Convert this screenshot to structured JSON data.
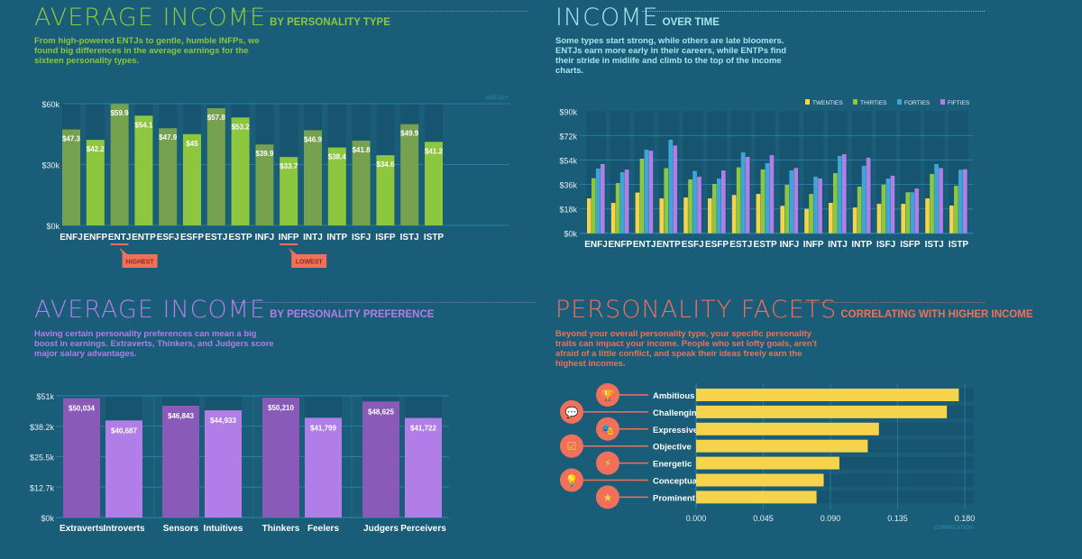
{
  "colors": {
    "background": "#1a5d78",
    "track": "#165470",
    "grid": "#2a8fb8",
    "green": "#8dc63f",
    "green_dark": "#76a14e",
    "teal": "#a8e4ef",
    "purple": "#b07ee6",
    "purple_dark": "#8a5ab8",
    "coral": "#f0705a",
    "yellow": "#f5d34a",
    "blue": "#3ea6d4"
  },
  "panel1": {
    "title": "AVERAGE INCOME",
    "subtitle": "BY PERSONALITY TYPE",
    "description": "From high-powered ENTJs to gentle, humble INFPs, we found big differences in the average earnings for the sixteen personality types.",
    "note": "AGE 21+",
    "highest_label": "HIGHEST",
    "lowest_label": "LOWEST"
  },
  "panel2": {
    "title": "INCOME",
    "subtitle": "OVER TIME",
    "description": "Some types start strong, while others are late bloomers. ENTJs earn more early in their careers, while ENTPs find their stride in midlife and climb to the top of the income charts."
  },
  "panel3": {
    "title": "AVERAGE INCOME",
    "subtitle": "BY PERSONALITY PREFERENCE",
    "description": "Having certain personality preferences can mean a big boost in earnings. Extraverts, Thinkers, and Judgers score major salary advantages."
  },
  "panel4": {
    "title": "PERSONALITY FACETS",
    "subtitle": "CORRELATING WITH HIGHER INCOME",
    "description": "Beyond your overall personality type, your specific personality traits can impact your income. People who set lofty goals, aren't afraid of a little conflict, and speak their ideas freely earn the highest incomes."
  },
  "chart_data": [
    {
      "type": "bar",
      "categories": [
        "ENFJ",
        "ENFP",
        "ENTJ",
        "ENTP",
        "ESFJ",
        "ESFP",
        "ESTJ",
        "ESTP",
        "INFJ",
        "INFP",
        "INTJ",
        "INTP",
        "ISFJ",
        "ISFP",
        "ISTJ",
        "ISTP"
      ],
      "values": [
        47.3,
        42.2,
        59.9,
        54.1,
        47.9,
        45,
        57.8,
        53.2,
        39.9,
        33.7,
        46.9,
        38.4,
        41.8,
        34.6,
        49.9,
        41.2
      ],
      "data_labels": [
        "$47.3",
        "$42.2",
        "$59.9",
        "$54.1",
        "$47.9",
        "$45",
        "$57.8",
        "$53.2",
        "$39.9",
        "$33.7",
        "$46.9",
        "$38.4",
        "$41.8",
        "$34.6",
        "$49.9",
        "$41.2"
      ],
      "ylim": [
        0,
        60
      ],
      "yticks": [
        "$0k",
        "$30k",
        "$60k"
      ],
      "ytick_values": [
        0,
        30,
        60
      ],
      "highlight": {
        "highest": "ENTJ",
        "lowest": "INFP"
      }
    },
    {
      "type": "bar",
      "categories": [
        "ENFJ",
        "ENFP",
        "ENTJ",
        "ENTP",
        "ESFJ",
        "ESFP",
        "ESTJ",
        "ESTP",
        "INFJ",
        "INFP",
        "INTJ",
        "INTP",
        "ISFJ",
        "ISFP",
        "ISTJ",
        "ISTP"
      ],
      "series": [
        {
          "name": "TWENTIES",
          "color": "#f5d34a",
          "values": [
            25.7,
            22.4,
            30,
            25.7,
            26.4,
            25.7,
            28.2,
            29,
            20.2,
            18,
            22.4,
            19,
            21.7,
            21.7,
            25.7,
            20.4
          ]
        },
        {
          "name": "THIRTIES",
          "color": "#8dc63f",
          "values": [
            40.6,
            37,
            55,
            48,
            39.7,
            36.4,
            48.6,
            47,
            35.7,
            29,
            44.3,
            34.4,
            35.9,
            30.2,
            43.7,
            35
          ]
        },
        {
          "name": "FORTIES",
          "color": "#3ea6d4",
          "values": [
            47.7,
            45,
            61.6,
            69,
            45.9,
            40.4,
            59.6,
            51.7,
            46.3,
            41.7,
            57,
            49.7,
            40.4,
            30.2,
            51,
            46.8
          ]
        },
        {
          "name": "FIFTIES",
          "color": "#b07ee6",
          "values": [
            51,
            47,
            60.8,
            64.7,
            41.7,
            46.3,
            56.3,
            57.6,
            48.1,
            40.4,
            58.3,
            55.7,
            42.4,
            33,
            48.1,
            47.2
          ]
        }
      ],
      "ylim": [
        0,
        90
      ],
      "yticks": [
        "$0k",
        "$18k",
        "$36k",
        "$54k",
        "$72k",
        "$90k"
      ],
      "ytick_values": [
        0,
        18,
        36,
        54,
        72,
        90
      ],
      "legend": "top-right"
    },
    {
      "type": "bar",
      "categories": [
        "Extraverts",
        "Introverts",
        "Sensors",
        "Intuitives",
        "Thinkers",
        "Feelers",
        "Judgers",
        "Perceivers"
      ],
      "values": [
        50034,
        40687,
        46843,
        44933,
        50210,
        41799,
        48625,
        41722
      ],
      "data_labels": [
        "$50,034",
        "$40,687",
        "$46,843",
        "$44,933",
        "$50,210",
        "$41,799",
        "$48,625",
        "$41,722"
      ],
      "ylim": [
        0,
        51000
      ],
      "yticks": [
        "$0k",
        "$12.7k",
        "$25.5k",
        "$38.2k",
        "$51k"
      ],
      "ytick_values": [
        0,
        12750,
        25500,
        38250,
        51000
      ]
    },
    {
      "type": "bar",
      "orientation": "horizontal",
      "categories": [
        "Ambitious",
        "Challenging",
        "Expressive",
        "Objective",
        "Energetic",
        "Conceptual",
        "Prominent"
      ],
      "icons": [
        "trophy-icon",
        "speech-bubbles-icon",
        "theater-masks-icon",
        "checklist-icon",
        "lightning-icon",
        "lightbulb-icon",
        "star-icon"
      ],
      "values": [
        0.176,
        0.168,
        0.1225,
        0.115,
        0.096,
        0.0855,
        0.0807
      ],
      "xlim": [
        0,
        0.18
      ],
      "xticks": [
        "0.000",
        "0.045",
        "0.090",
        "0.135",
        "0.180"
      ],
      "xtick_values": [
        0,
        0.045,
        0.09,
        0.135,
        0.18
      ],
      "xlabel": "CORRELATION"
    }
  ]
}
